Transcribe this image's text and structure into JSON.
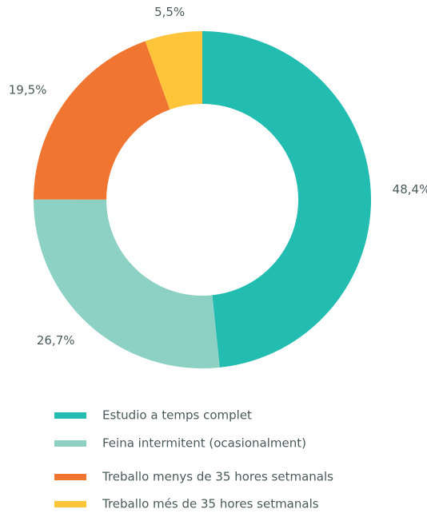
{
  "chart_data": {
    "type": "donut",
    "categories": [
      "Estudio a temps complet",
      "Feina intermitent (ocasionalment)",
      "Treballo menys de 35 hores setmanals",
      "Treballo més de 35 hores setmanals"
    ],
    "values": [
      48.4,
      26.7,
      19.5,
      5.5
    ],
    "value_labels": [
      "48,4%",
      "26,7%",
      "19,5%",
      "5,5%"
    ],
    "colors": [
      "#22bcb0",
      "#8dd0c4",
      "#f07530",
      "#fec43a"
    ]
  }
}
